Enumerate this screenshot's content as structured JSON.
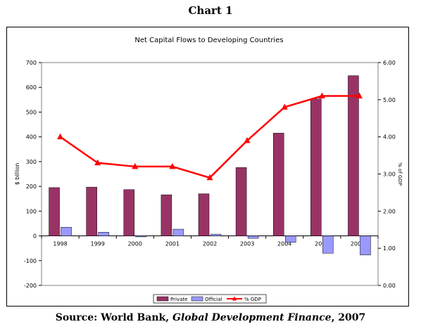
{
  "header": {
    "title": "Chart 1"
  },
  "source": {
    "prefix": "Source: World Bank, ",
    "publication": "Global Development Finance",
    "suffix": ", 2007"
  },
  "chart_data": {
    "type": "bar",
    "title": "Net Capital Flows to Developing Countries",
    "xlabel": "",
    "ylabel": "$ billion",
    "y2label": "% of GDP",
    "categories": [
      "1998",
      "1999",
      "2000",
      "2001",
      "2002",
      "2003",
      "2004",
      "2005",
      "2006e"
    ],
    "ylim": [
      -200,
      700
    ],
    "yticks": [
      "-200",
      "-100",
      "0",
      "100",
      "200",
      "300",
      "400",
      "500",
      "600",
      "700"
    ],
    "y2lim": [
      0,
      6
    ],
    "y2ticks": [
      "0.00",
      "1.00",
      "2.00",
      "3.00",
      "4.00",
      "5.00",
      "6.00"
    ],
    "grid": false,
    "legend_position": "bottom",
    "series": [
      {
        "name": "Private",
        "type": "bar",
        "axis": "left",
        "color": "#993366",
        "values": [
          195,
          197,
          187,
          166,
          170,
          276,
          415,
          553,
          647
        ]
      },
      {
        "name": "Official",
        "type": "bar",
        "axis": "left",
        "color": "#9999ff",
        "values": [
          35,
          15,
          -4,
          27,
          7,
          -10,
          -26,
          -70,
          -77
        ]
      },
      {
        "name": "% GDP",
        "type": "line",
        "axis": "right",
        "color": "#ff0000",
        "values": [
          4.0,
          3.3,
          3.2,
          3.2,
          2.9,
          3.9,
          4.8,
          5.1,
          5.1
        ]
      }
    ]
  }
}
